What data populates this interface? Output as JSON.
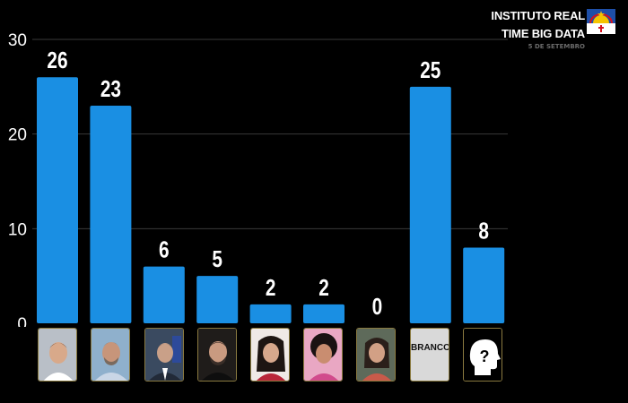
{
  "header": {
    "title_line1": "INSTITUTO REAL",
    "title_line2": "TIME BIG DATA",
    "date": "5 DE SETEMBRO"
  },
  "colors": {
    "background": "#000000",
    "bar": "#1a8fe3",
    "text": "#ffffff",
    "grid": "#3a3a3a"
  },
  "icons": {
    "flag": "pernambuco-flag-icon",
    "unknown": "question-head-icon"
  },
  "chart_data": {
    "type": "bar",
    "categories": [
      "",
      "",
      "",
      "",
      "",
      "",
      "",
      "BRANCO",
      ""
    ],
    "values": [
      26,
      23,
      6,
      5,
      2,
      2,
      0,
      25,
      8
    ],
    "data_labels": [
      "26",
      "23",
      "6",
      "5",
      "2",
      "2",
      "0",
      "25",
      "8"
    ],
    "yticks": [
      "0",
      "10",
      "20",
      "30"
    ],
    "ylim": [
      0,
      30
    ],
    "grid": true,
    "title": "",
    "xlabel": "",
    "ylabel": ""
  }
}
